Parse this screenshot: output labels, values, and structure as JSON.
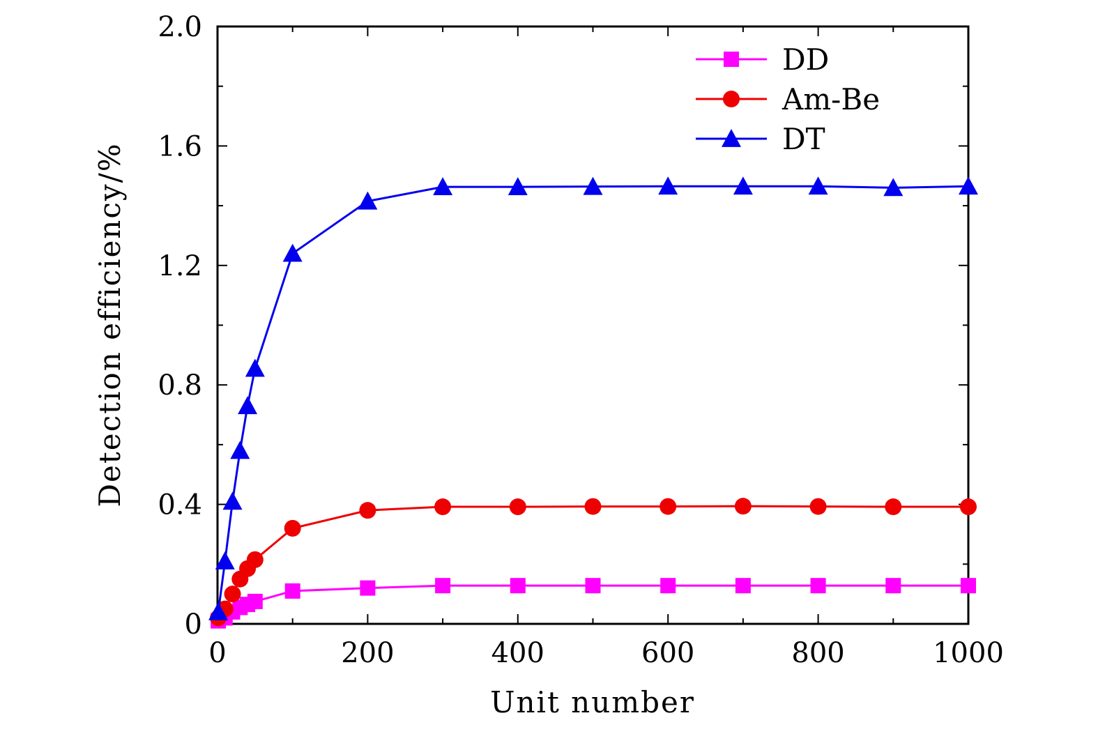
{
  "chart_data": {
    "type": "line",
    "title": "",
    "xlabel": "Unit number",
    "ylabel": "Detection efficiency/%",
    "xlim": [
      0,
      1000
    ],
    "ylim": [
      0,
      2.0
    ],
    "x_ticks": [
      0,
      200,
      400,
      600,
      800,
      1000
    ],
    "y_ticks": [
      0,
      0.4,
      0.8,
      1.2,
      1.6,
      2.0
    ],
    "x_tick_labels": [
      "0",
      "200",
      "400",
      "600",
      "800",
      "1000"
    ],
    "y_tick_labels": [
      "0",
      "0.4",
      "0.8",
      "1.2",
      "1.6",
      "2.0"
    ],
    "grid": false,
    "legend_position": "top-right",
    "series": [
      {
        "name": "DD",
        "color": "#ff00ff",
        "marker": "square",
        "x": [
          1,
          10,
          20,
          30,
          40,
          50,
          100,
          200,
          300,
          400,
          500,
          600,
          700,
          800,
          900,
          1000
        ],
        "y": [
          0.01,
          0.02,
          0.04,
          0.055,
          0.065,
          0.075,
          0.11,
          0.12,
          0.128,
          0.128,
          0.128,
          0.128,
          0.128,
          0.128,
          0.128,
          0.128
        ]
      },
      {
        "name": "Am-Be",
        "color": "#ee0000",
        "marker": "circle",
        "x": [
          1,
          10,
          20,
          30,
          40,
          50,
          100,
          200,
          300,
          400,
          500,
          600,
          700,
          800,
          900,
          1000
        ],
        "y": [
          0.02,
          0.05,
          0.1,
          0.15,
          0.185,
          0.215,
          0.32,
          0.38,
          0.392,
          0.392,
          0.393,
          0.393,
          0.394,
          0.393,
          0.392,
          0.392
        ]
      },
      {
        "name": "DT",
        "color": "#0000ee",
        "marker": "triangle",
        "x": [
          1,
          10,
          20,
          30,
          40,
          50,
          100,
          200,
          300,
          400,
          500,
          600,
          700,
          800,
          900,
          1000
        ],
        "y": [
          0.04,
          0.21,
          0.41,
          0.58,
          0.73,
          0.855,
          1.24,
          1.415,
          1.463,
          1.463,
          1.464,
          1.465,
          1.465,
          1.465,
          1.46,
          1.465
        ]
      }
    ]
  }
}
